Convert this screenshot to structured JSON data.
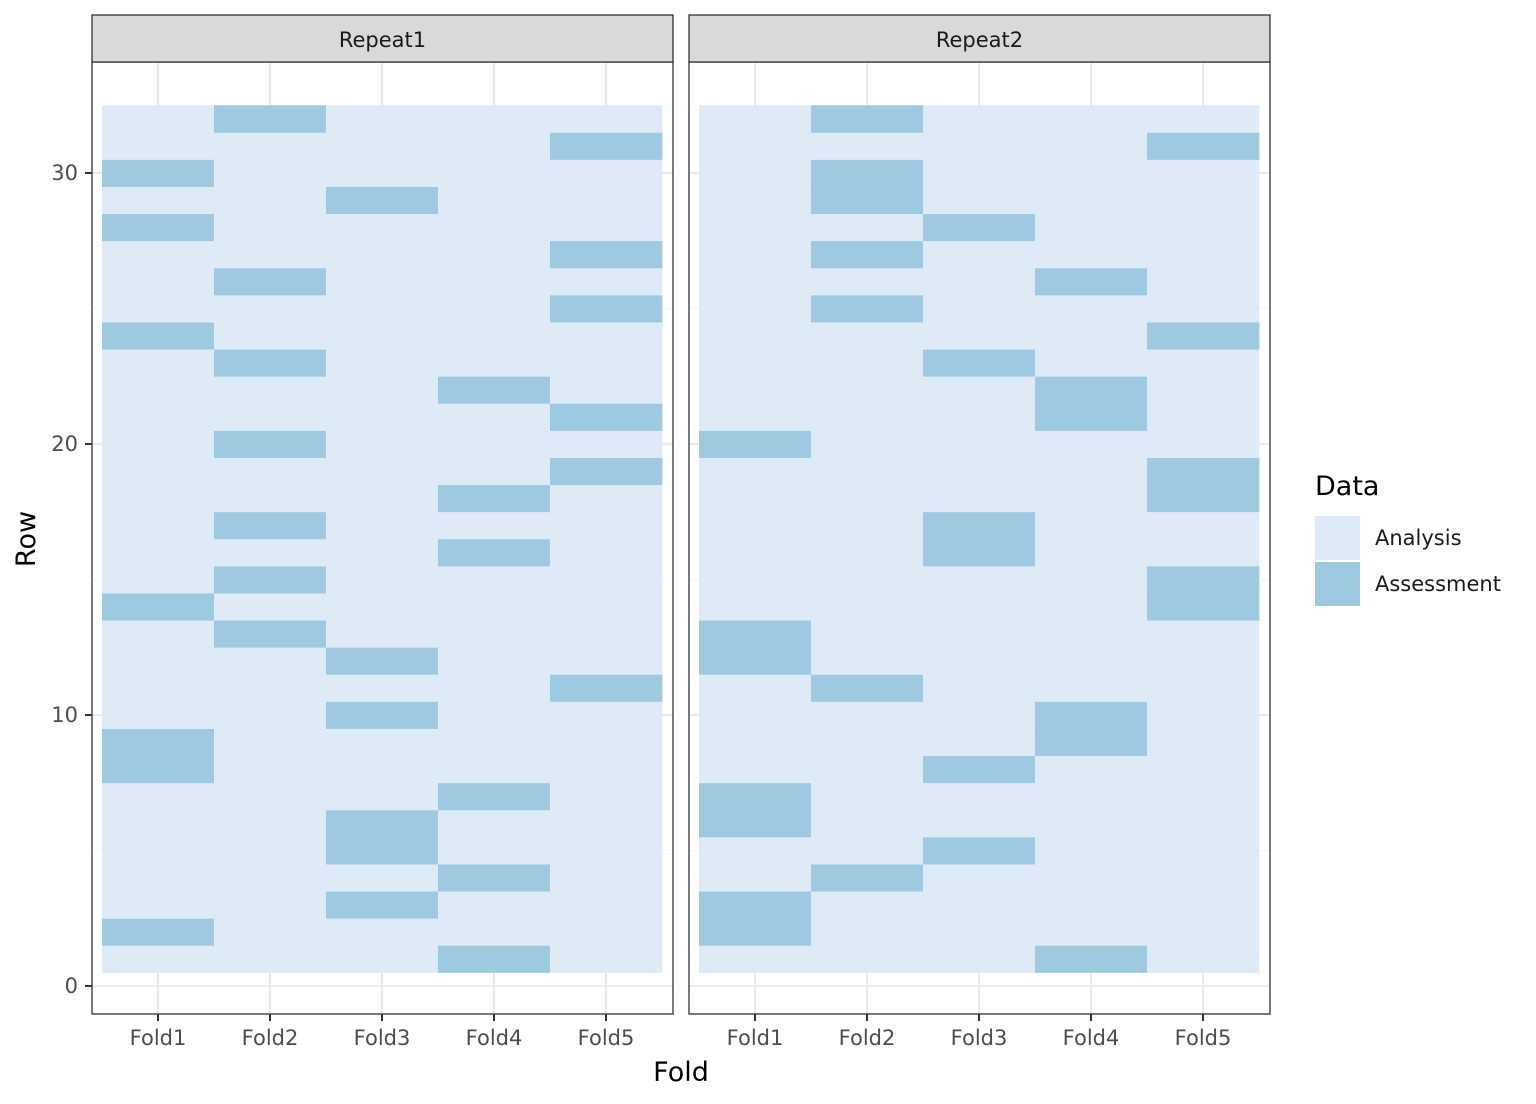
{
  "chart_data": {
    "type": "heatmap",
    "xlabel": "Fold",
    "ylabel": "Row",
    "x_categories": [
      "Fold1",
      "Fold2",
      "Fold3",
      "Fold4",
      "Fold5"
    ],
    "y_range": [
      1,
      32
    ],
    "ylim": [
      0,
      33
    ],
    "y_ticks": [
      0,
      10,
      20,
      30
    ],
    "grid": true,
    "legend": {
      "title": "Data",
      "position": "right",
      "entries": [
        {
          "label": "Analysis",
          "color": "#deebf7"
        },
        {
          "label": "Assessment",
          "color": "#9ecae1"
        }
      ]
    },
    "colors": {
      "Analysis": "#deebf7",
      "Assessment": "#9ecae1"
    },
    "facets": [
      {
        "label": "Repeat1",
        "assessment": {
          "Fold1": [
            2,
            8,
            9,
            14,
            24,
            28,
            30
          ],
          "Fold2": [
            13,
            15,
            17,
            20,
            23,
            26,
            32
          ],
          "Fold3": [
            3,
            5,
            6,
            10,
            12,
            29
          ],
          "Fold4": [
            1,
            4,
            7,
            16,
            18,
            22
          ],
          "Fold5": [
            11,
            19,
            21,
            25,
            27,
            31
          ]
        }
      },
      {
        "label": "Repeat2",
        "assessment": {
          "Fold1": [
            2,
            3,
            6,
            7,
            12,
            13,
            20
          ],
          "Fold2": [
            4,
            11,
            25,
            27,
            29,
            30,
            32
          ],
          "Fold3": [
            5,
            8,
            16,
            17,
            23,
            28
          ],
          "Fold4": [
            1,
            9,
            10,
            21,
            22,
            26
          ],
          "Fold5": [
            14,
            15,
            18,
            19,
            24,
            31
          ]
        }
      }
    ]
  }
}
